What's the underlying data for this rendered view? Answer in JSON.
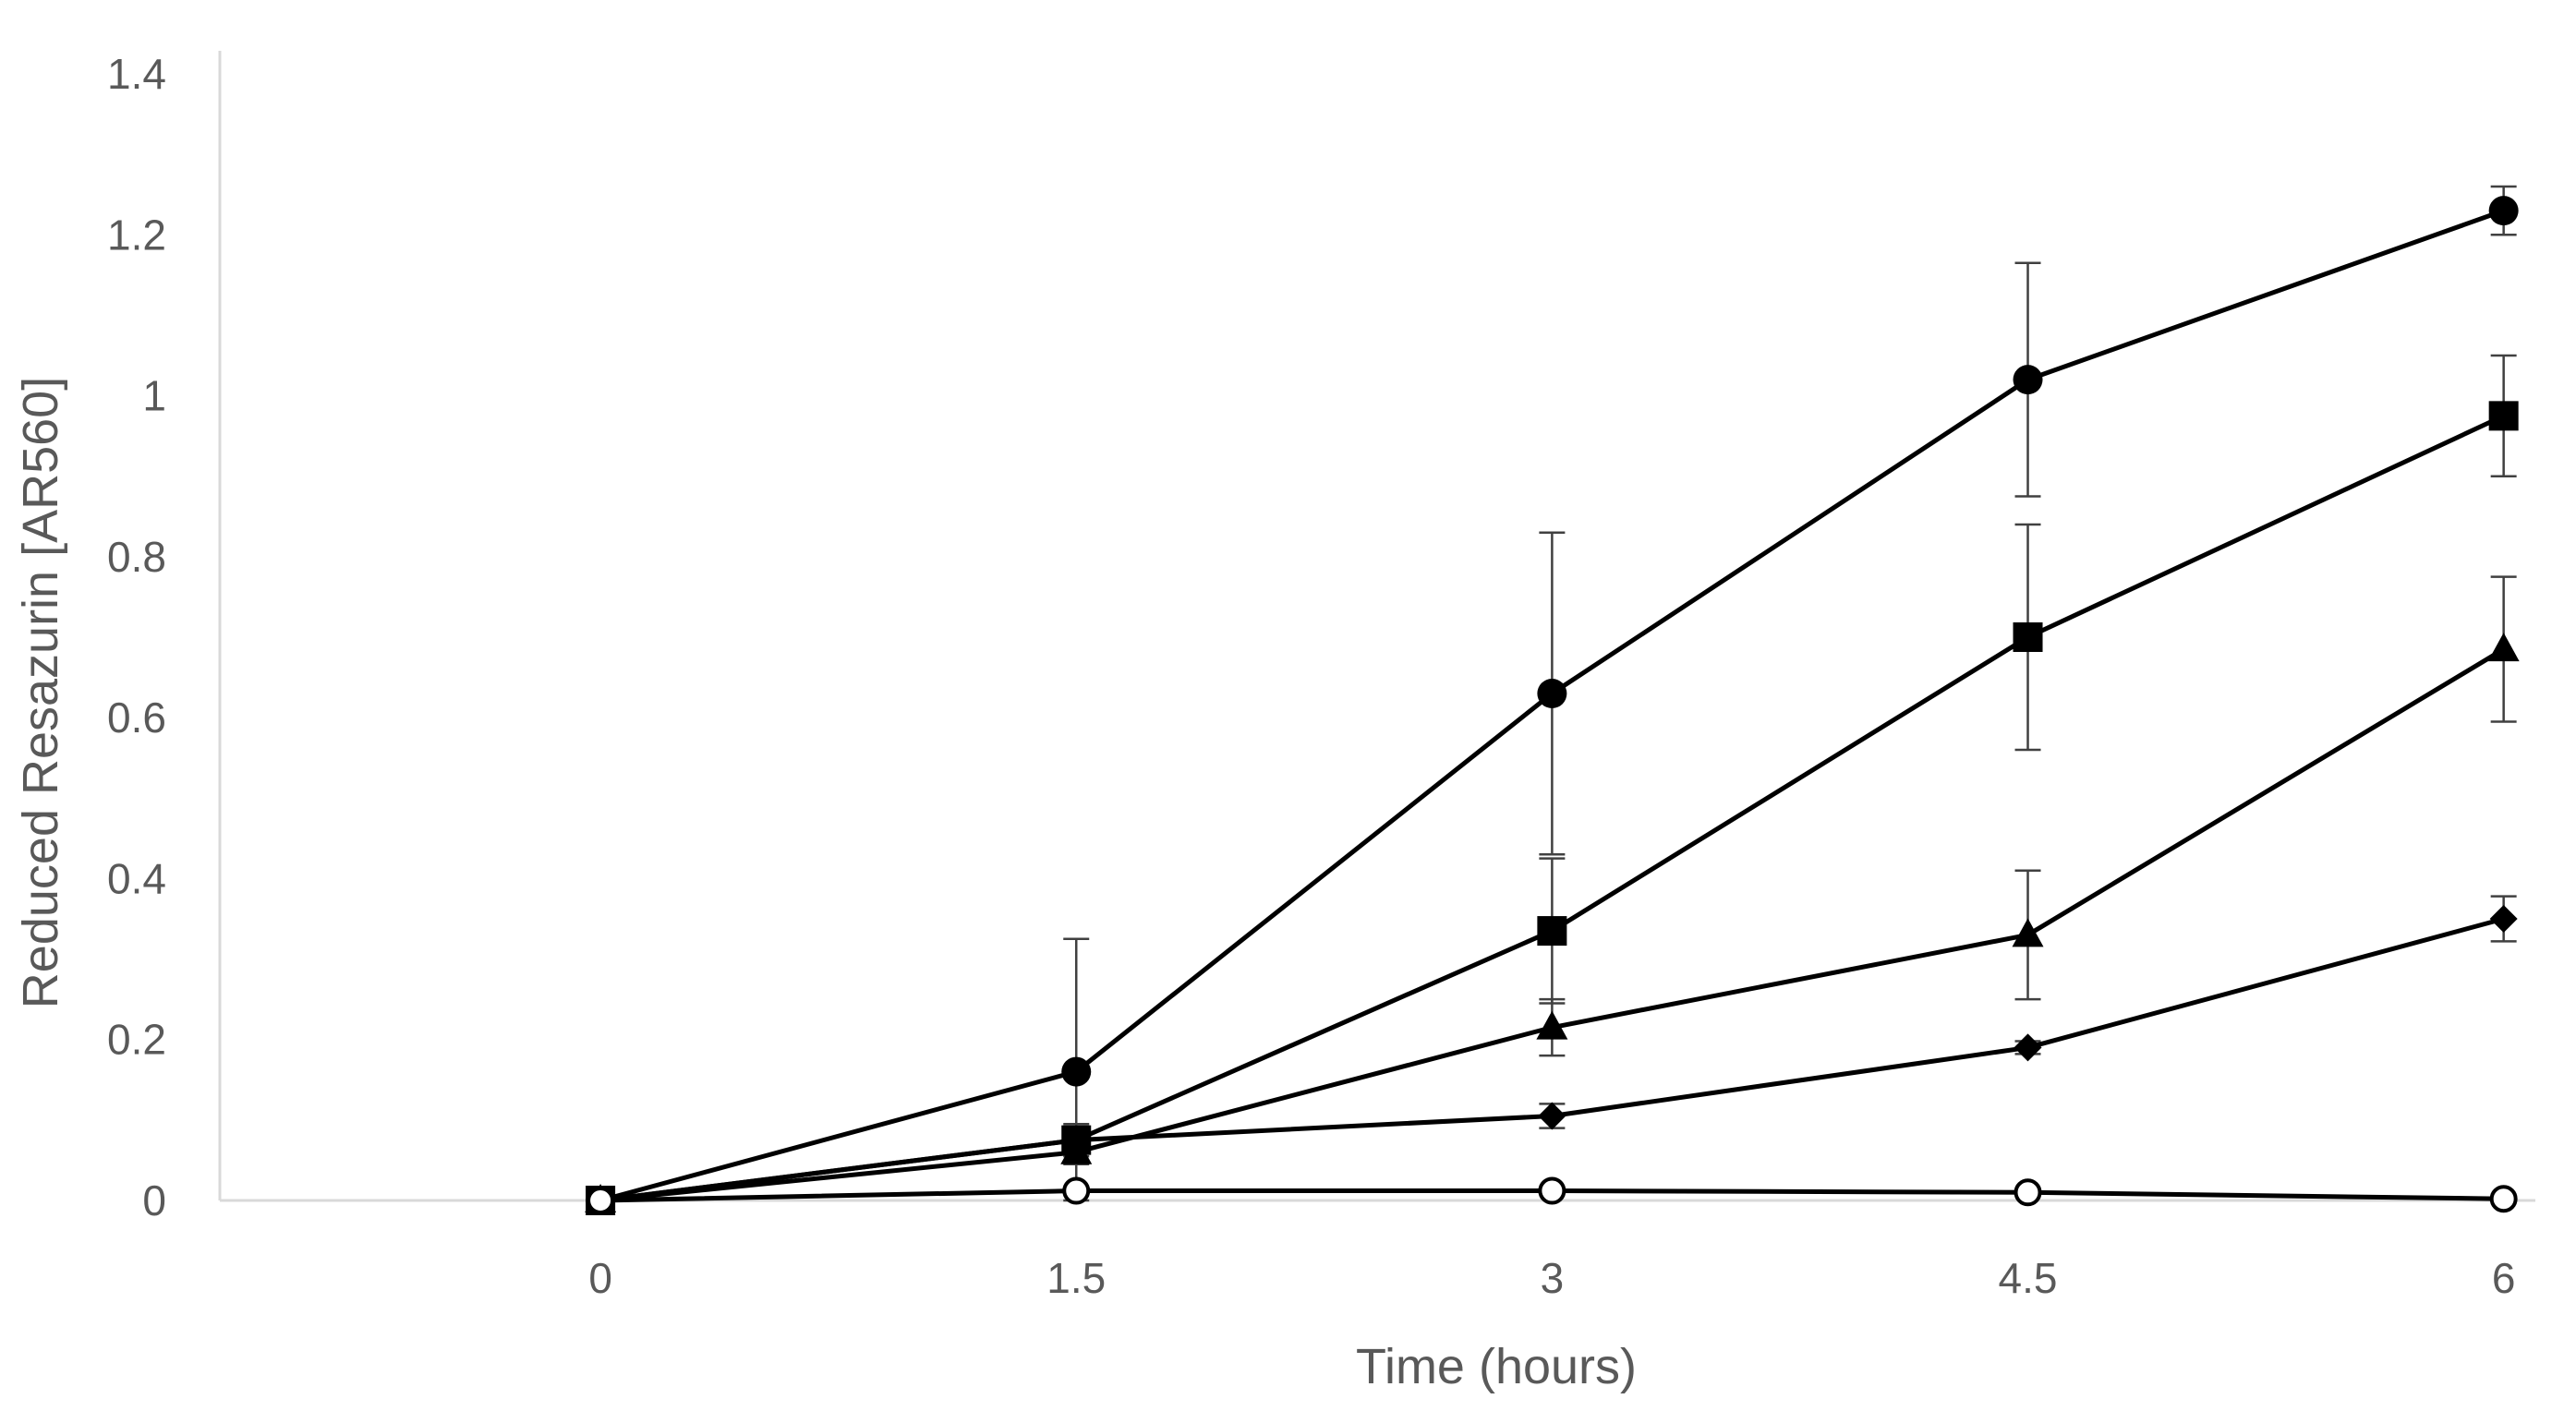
{
  "chart_data": {
    "type": "line",
    "title": "",
    "xlabel": "Time (hours)",
    "ylabel": "Reduced Resazurin [AR560]",
    "x": [
      0,
      1.5,
      3,
      4.5,
      6
    ],
    "x_tick_labels": [
      "0",
      "1.5",
      "3",
      "4.5",
      "6"
    ],
    "y_ticks": [
      0,
      0.2,
      0.4,
      0.6,
      0.8,
      1,
      1.2,
      1.4
    ],
    "y_tick_labels": [
      "0",
      "0.2",
      "0.4",
      "0.6",
      "0.8",
      "1",
      "1.2",
      "1.4"
    ],
    "xlim": [
      -1.2,
      6.1
    ],
    "ylim": [
      0,
      1.4
    ],
    "grid": false,
    "legend": "none",
    "line_color": "#000000",
    "errorbar_color": "#404040",
    "series": [
      {
        "marker": "circle-filled",
        "values": [
          0,
          0.16,
          0.63,
          1.02,
          1.23
        ],
        "errors": [
          0,
          0.165,
          0.2,
          0.145,
          0.03
        ]
      },
      {
        "marker": "square-filled",
        "values": [
          0,
          0.075,
          0.335,
          0.7,
          0.975
        ],
        "errors": [
          0,
          0.02,
          0.09,
          0.14,
          0.075
        ]
      },
      {
        "marker": "triangle-filled",
        "values": [
          0,
          0.06,
          0.215,
          0.33,
          0.685
        ],
        "errors": [
          0,
          0.015,
          0.035,
          0.08,
          0.09
        ]
      },
      {
        "marker": "diamond-filled",
        "values": [
          0,
          0.075,
          0.105,
          0.19,
          0.35
        ],
        "errors": [
          0,
          0.01,
          0.015,
          0.008,
          0.028
        ]
      },
      {
        "marker": "circle-open",
        "values": [
          0,
          0.012,
          0.012,
          0.01,
          0.002
        ],
        "errors": [
          0,
          0,
          0,
          0,
          0
        ]
      }
    ]
  }
}
